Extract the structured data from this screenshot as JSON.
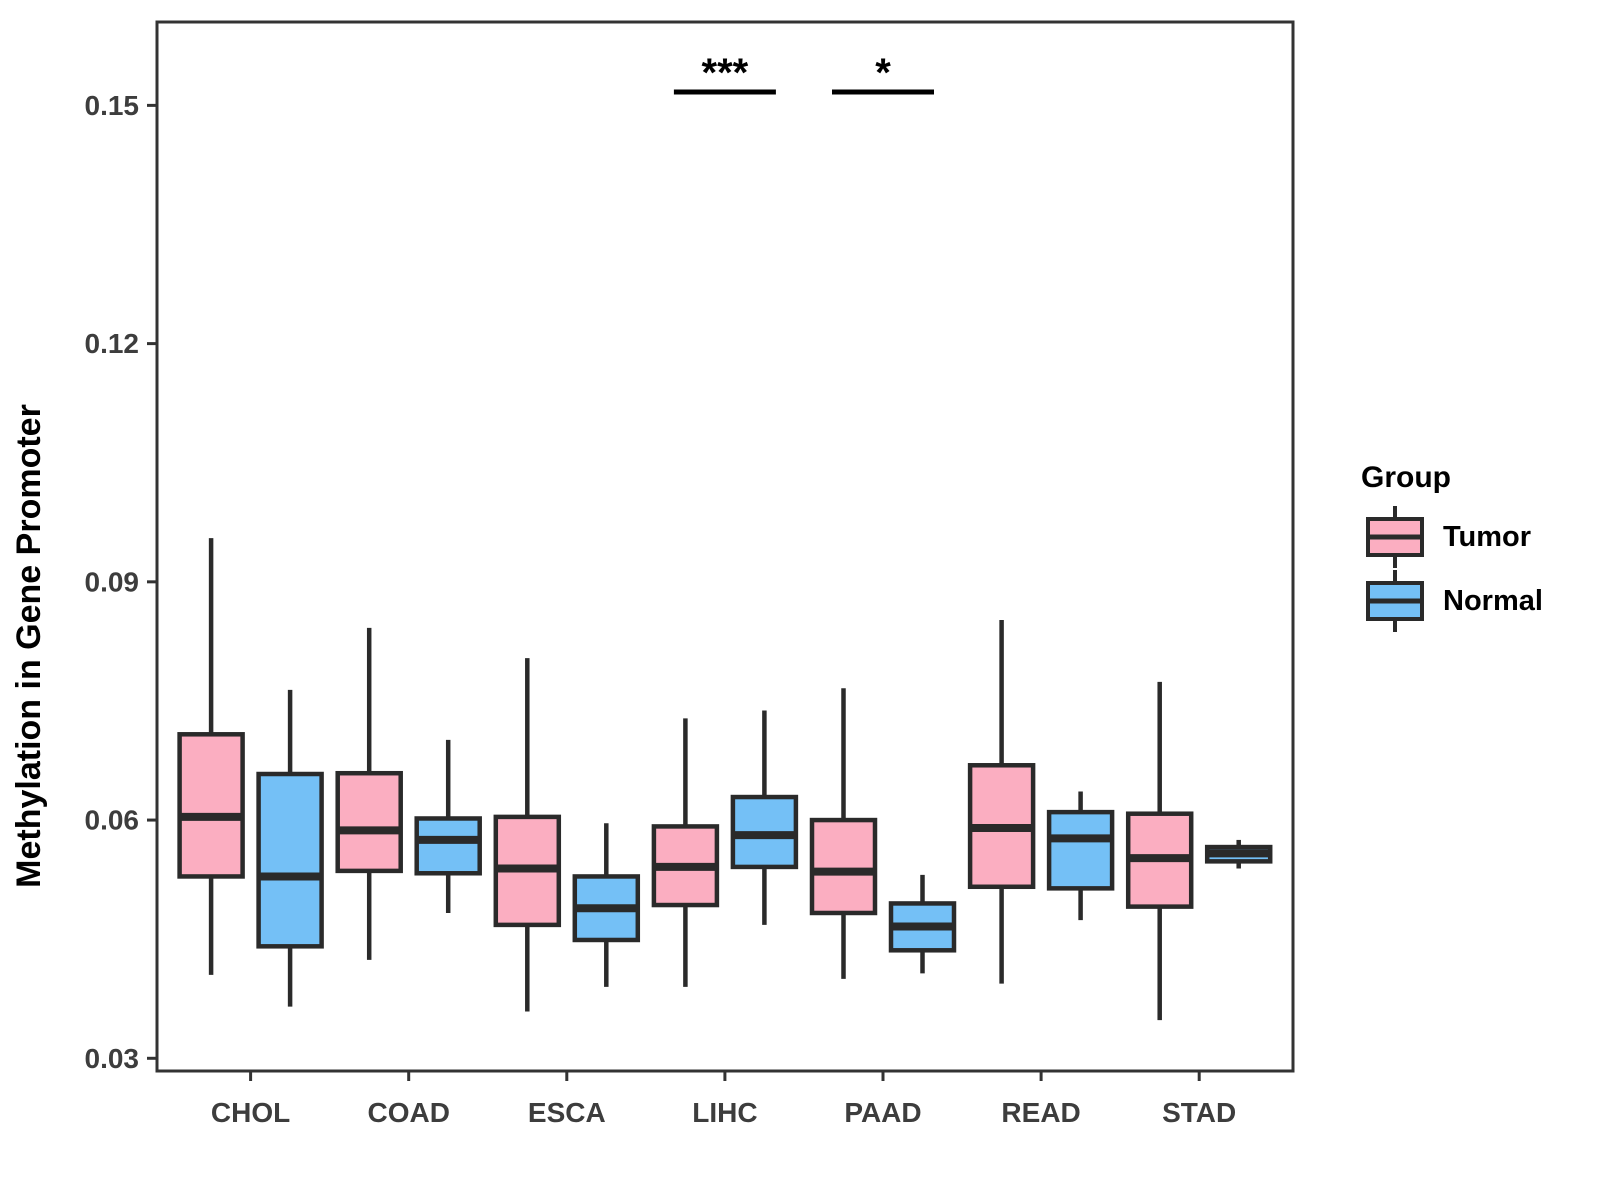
{
  "figure": {
    "background": "#ffffff",
    "panel_border_color": "#333333",
    "box_stroke_color": "#2a2a2a",
    "tick_label_color": "#3d3d3d",
    "axis_title_color": "#000000"
  },
  "chart_data": {
    "type": "boxplot",
    "title": "",
    "xlabel": "",
    "ylabel": "Methylation in Gene Promoter",
    "categories": [
      "CHOL",
      "COAD",
      "ESCA",
      "LIHC",
      "PAAD",
      "READ",
      "STAD"
    ],
    "y_ticks": [
      {
        "v": 0.03,
        "label": "0.03"
      },
      {
        "v": 0.06,
        "label": "0.06"
      },
      {
        "v": 0.09,
        "label": "0.09"
      },
      {
        "v": 0.12,
        "label": "0.12"
      },
      {
        "v": 0.15,
        "label": "0.15"
      }
    ],
    "ylim": [
      0.0284,
      0.1605
    ],
    "grid": false,
    "legend_position": "right",
    "legend_title": "Group",
    "series": [
      {
        "name": "Tumor",
        "color": "#FBAEC1",
        "boxes": [
          {
            "category": "CHOL",
            "whisker_low": 0.0405,
            "q1": 0.0529,
            "median": 0.0604,
            "q3": 0.0708,
            "whisker_high": 0.0955
          },
          {
            "category": "COAD",
            "whisker_low": 0.0424,
            "q1": 0.0536,
            "median": 0.0587,
            "q3": 0.0659,
            "whisker_high": 0.0842
          },
          {
            "category": "ESCA",
            "whisker_low": 0.0359,
            "q1": 0.0468,
            "median": 0.0539,
            "q3": 0.0604,
            "whisker_high": 0.0804
          },
          {
            "category": "LIHC",
            "whisker_low": 0.039,
            "q1": 0.0493,
            "median": 0.0541,
            "q3": 0.0592,
            "whisker_high": 0.0728
          },
          {
            "category": "PAAD",
            "whisker_low": 0.04,
            "q1": 0.0483,
            "median": 0.0535,
            "q3": 0.06,
            "whisker_high": 0.0766
          },
          {
            "category": "READ",
            "whisker_low": 0.0394,
            "q1": 0.0516,
            "median": 0.059,
            "q3": 0.0669,
            "whisker_high": 0.0852
          },
          {
            "category": "STAD",
            "whisker_low": 0.0348,
            "q1": 0.0491,
            "median": 0.0552,
            "q3": 0.0608,
            "whisker_high": 0.0774
          }
        ]
      },
      {
        "name": "Normal",
        "color": "#74C0F6",
        "boxes": [
          {
            "category": "CHOL",
            "whisker_low": 0.0365,
            "q1": 0.0441,
            "median": 0.0529,
            "q3": 0.0658,
            "whisker_high": 0.0764
          },
          {
            "category": "COAD",
            "whisker_low": 0.0483,
            "q1": 0.0533,
            "median": 0.0575,
            "q3": 0.0602,
            "whisker_high": 0.0701
          },
          {
            "category": "ESCA",
            "whisker_low": 0.039,
            "q1": 0.0449,
            "median": 0.0489,
            "q3": 0.0529,
            "whisker_high": 0.0596
          },
          {
            "category": "LIHC",
            "whisker_low": 0.0468,
            "q1": 0.0541,
            "median": 0.0581,
            "q3": 0.0629,
            "whisker_high": 0.0738
          },
          {
            "category": "PAAD",
            "whisker_low": 0.0407,
            "q1": 0.0436,
            "median": 0.0466,
            "q3": 0.0495,
            "whisker_high": 0.0531
          },
          {
            "category": "READ",
            "whisker_low": 0.0474,
            "q1": 0.0514,
            "median": 0.0577,
            "q3": 0.061,
            "whisker_high": 0.0636
          },
          {
            "category": "STAD",
            "whisker_low": 0.0539,
            "q1": 0.0548,
            "median": 0.0558,
            "q3": 0.0566,
            "whisker_high": 0.0575
          }
        ]
      }
    ],
    "annotations": [
      {
        "category": "LIHC",
        "label": "***"
      },
      {
        "category": "PAAD",
        "label": "*"
      }
    ]
  }
}
